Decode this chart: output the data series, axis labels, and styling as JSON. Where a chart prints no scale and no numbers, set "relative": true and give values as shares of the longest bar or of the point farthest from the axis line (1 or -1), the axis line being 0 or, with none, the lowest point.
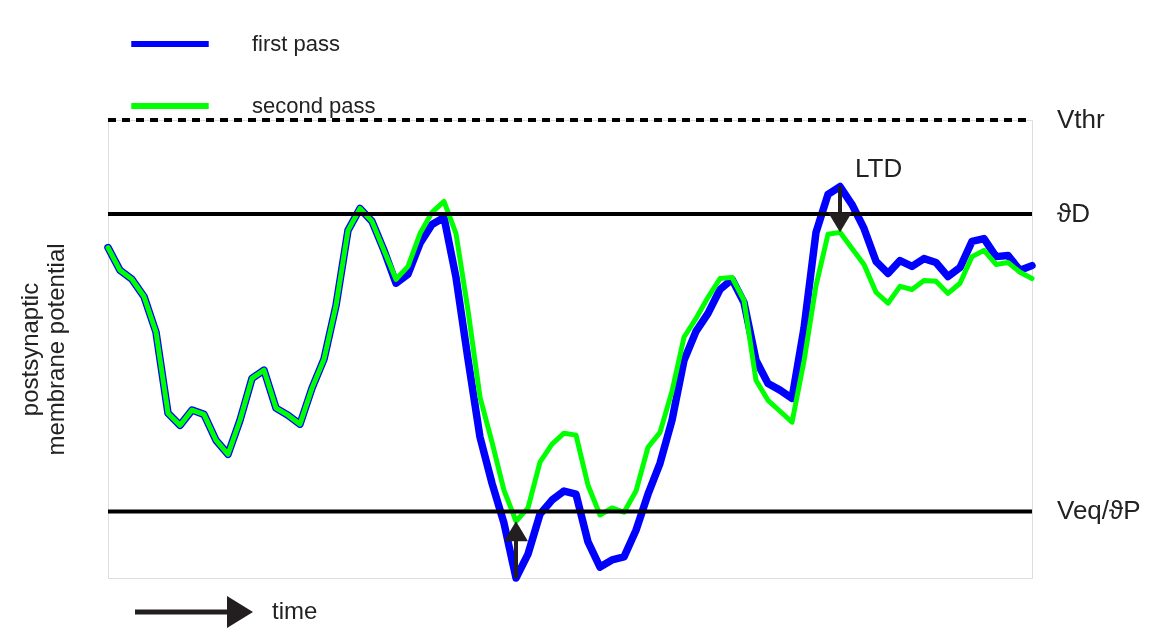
{
  "chart_data": {
    "type": "line",
    "relative": true,
    "ylabel": "postsynaptic\nmembrane potential",
    "legend": "top left",
    "line_style": "solid",
    "categories": [
      null,
      null,
      null,
      null,
      null,
      null,
      null,
      null,
      null,
      null,
      null,
      null,
      null,
      null,
      null,
      null,
      null,
      null,
      null,
      null,
      null,
      null,
      null,
      null,
      null,
      null,
      null,
      null,
      null,
      null,
      null,
      null,
      null,
      null,
      null,
      null,
      null,
      null,
      null,
      null,
      null,
      null,
      null,
      null,
      null,
      null,
      null,
      null,
      null,
      null,
      null,
      null,
      null,
      null,
      null,
      null,
      null,
      null,
      null,
      null,
      null,
      null,
      null,
      null,
      null,
      null,
      null,
      null,
      null,
      null,
      null,
      null,
      null,
      null,
      null,
      null,
      null,
      null
    ],
    "series": [
      {
        "name": "first pass",
        "color": "#0000ff",
        "values": [
          0.844,
          0.786,
          0.763,
          0.719,
          0.628,
          0.421,
          0.39,
          0.429,
          0.418,
          0.352,
          0.316,
          0.403,
          0.51,
          0.531,
          0.434,
          0.416,
          0.393,
          0.485,
          0.559,
          0.696,
          0.888,
          0.944,
          0.911,
          0.837,
          0.753,
          0.776,
          0.855,
          0.903,
          0.921,
          0.768,
          0.559,
          0.36,
          0.242,
          0.14,
          0.0,
          0.061,
          0.163,
          0.199,
          0.222,
          0.214,
          0.092,
          0.028,
          0.046,
          0.054,
          0.122,
          0.214,
          0.293,
          0.403,
          0.556,
          0.63,
          0.676,
          0.737,
          0.763,
          0.704,
          0.556,
          0.497,
          0.48,
          0.459,
          0.638,
          0.883,
          0.98,
          1.0,
          0.954,
          0.893,
          0.809,
          0.778,
          0.811,
          0.796,
          0.816,
          0.806,
          0.77,
          0.793,
          0.86,
          0.867,
          0.821,
          0.824,
          0.786,
          0.798
        ]
      },
      {
        "name": "second pass",
        "color": "#00ff00",
        "values": [
          0.844,
          0.786,
          0.763,
          0.719,
          0.628,
          0.421,
          0.39,
          0.429,
          0.418,
          0.352,
          0.316,
          0.403,
          0.51,
          0.531,
          0.434,
          0.416,
          0.393,
          0.485,
          0.559,
          0.696,
          0.888,
          0.944,
          0.911,
          0.837,
          0.763,
          0.796,
          0.88,
          0.934,
          0.962,
          0.88,
          0.684,
          0.462,
          0.347,
          0.224,
          0.145,
          0.179,
          0.296,
          0.342,
          0.37,
          0.365,
          0.237,
          0.161,
          0.179,
          0.168,
          0.222,
          0.334,
          0.372,
          0.477,
          0.615,
          0.663,
          0.717,
          0.765,
          0.768,
          0.709,
          0.505,
          0.454,
          0.426,
          0.398,
          0.554,
          0.747,
          0.878,
          0.883,
          0.842,
          0.801,
          0.73,
          0.702,
          0.745,
          0.737,
          0.76,
          0.758,
          0.727,
          0.753,
          0.821,
          0.837,
          0.801,
          0.806,
          0.781,
          0.765
        ]
      }
    ],
    "ref_lines": [
      {
        "axis": "y",
        "value": 1.17,
        "label": "Vthr",
        "line_style": "dashed",
        "color": "#000000"
      },
      {
        "axis": "y",
        "value": 0.93,
        "label": "ϑD",
        "color": "#000000"
      },
      {
        "axis": "y",
        "value": 0.17,
        "label": "Veq/ϑP",
        "color": "#000000"
      }
    ],
    "annotations": [
      "LTD",
      "time"
    ]
  }
}
